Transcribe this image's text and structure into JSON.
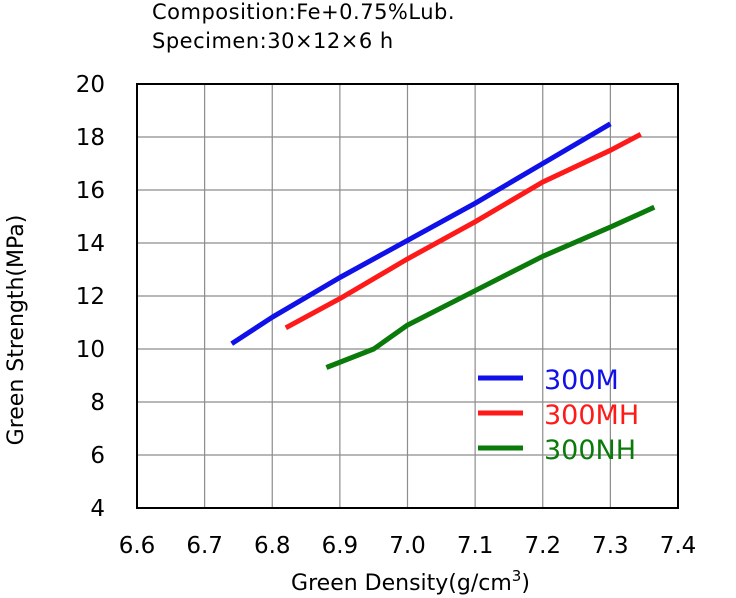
{
  "chart_data": {
    "type": "line",
    "title": "",
    "annotations": [
      "Composition:Fe+0.75%Lub.",
      "Specimen:30×12×6 h"
    ],
    "xlabel": "Green Density(g/cm",
    "xlabel_sup": "3",
    "xlabel_end": ")",
    "ylabel": "Green Strength(MPa)",
    "xlim": [
      6.6,
      7.4
    ],
    "ylim": [
      4,
      20
    ],
    "x_ticks": [
      "6.6",
      "6.7",
      "6.8",
      "6.9",
      "7.0",
      "7.1",
      "7.2",
      "7.3",
      "7.4"
    ],
    "y_ticks": [
      "4",
      "6",
      "8",
      "10",
      "12",
      "14",
      "16",
      "18",
      "20"
    ],
    "grid": true,
    "legend_position": "bottom-right",
    "series": [
      {
        "name": "300M",
        "color": "#1010e8",
        "points": [
          [
            6.74,
            10.2
          ],
          [
            6.8,
            11.2
          ],
          [
            6.9,
            12.7
          ],
          [
            7.0,
            14.1
          ],
          [
            7.1,
            15.5
          ],
          [
            7.2,
            17.0
          ],
          [
            7.3,
            18.5
          ]
        ]
      },
      {
        "name": "300MH",
        "color": "#ff1a1a",
        "points": [
          [
            6.82,
            10.8
          ],
          [
            6.9,
            11.9
          ],
          [
            7.0,
            13.4
          ],
          [
            7.1,
            14.8
          ],
          [
            7.2,
            16.3
          ],
          [
            7.3,
            17.5
          ],
          [
            7.345,
            18.1
          ]
        ]
      },
      {
        "name": "300NH",
        "color": "#0a7a0a",
        "points": [
          [
            6.88,
            9.3
          ],
          [
            6.95,
            10.0
          ],
          [
            7.0,
            10.9
          ],
          [
            7.1,
            12.2
          ],
          [
            7.2,
            13.5
          ],
          [
            7.3,
            14.6
          ],
          [
            7.365,
            15.35
          ]
        ]
      }
    ]
  }
}
